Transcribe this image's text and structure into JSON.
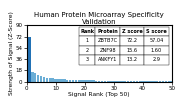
{
  "chart_data": {
    "type": "bar",
    "title": "Human Protein Microarray Specificity Validation",
    "xlabel": "Signal Rank (Top 50)",
    "ylabel": "Strength of Signal (Z-Score)",
    "x": [
      1,
      2,
      3,
      4,
      5,
      6,
      7,
      8,
      9,
      10,
      11,
      12,
      13,
      14,
      15,
      16,
      17,
      18,
      19,
      20,
      21,
      22,
      23,
      24,
      25,
      26,
      27,
      28,
      29,
      30,
      31,
      32,
      33,
      34,
      35,
      36,
      37,
      38,
      39,
      40,
      41,
      42,
      43,
      44,
      45,
      46,
      47,
      48,
      49,
      50
    ],
    "values": [
      72.2,
      15.6,
      13.2,
      10.5,
      8.8,
      7.5,
      6.5,
      5.7,
      5.0,
      4.5,
      4.1,
      3.8,
      3.5,
      3.2,
      3.0,
      2.8,
      2.6,
      2.4,
      2.3,
      2.1,
      2.0,
      1.9,
      1.8,
      1.7,
      1.65,
      1.6,
      1.55,
      1.5,
      1.45,
      1.4,
      1.35,
      1.3,
      1.25,
      1.2,
      1.15,
      1.1,
      1.05,
      1.0,
      0.95,
      0.9,
      0.87,
      0.84,
      0.81,
      0.78,
      0.75,
      0.72,
      0.69,
      0.66,
      0.63,
      0.6
    ],
    "colors": [
      "#2171b5",
      "#6baed6",
      "#6baed6",
      "#6baed6",
      "#6baed6",
      "#6baed6",
      "#6baed6",
      "#6baed6",
      "#6baed6",
      "#6baed6",
      "#6baed6",
      "#6baed6",
      "#6baed6",
      "#6baed6",
      "#6baed6",
      "#6baed6",
      "#6baed6",
      "#6baed6",
      "#6baed6",
      "#6baed6",
      "#6baed6",
      "#6baed6",
      "#6baed6",
      "#6baed6",
      "#6baed6",
      "#6baed6",
      "#6baed6",
      "#6baed6",
      "#6baed6",
      "#6baed6",
      "#6baed6",
      "#6baed6",
      "#6baed6",
      "#6baed6",
      "#6baed6",
      "#6baed6",
      "#6baed6",
      "#6baed6",
      "#6baed6",
      "#6baed6",
      "#6baed6",
      "#6baed6",
      "#6baed6",
      "#6baed6",
      "#6baed6",
      "#6baed6",
      "#6baed6",
      "#6baed6",
      "#6baed6",
      "#6baed6"
    ],
    "xlim": [
      0,
      50
    ],
    "xticks": [
      0,
      10,
      20,
      30,
      40,
      50
    ],
    "ylim": [
      0,
      90
    ],
    "yticks": [
      0,
      18,
      36,
      54,
      72,
      90
    ],
    "grid": false,
    "table": [
      [
        "Rank",
        "Protein",
        "Z score",
        "S score"
      ],
      [
        "1",
        "ZBTB7C",
        "72.2",
        "57.04"
      ],
      [
        "2",
        "ZNF98",
        "15.6",
        "1.60"
      ],
      [
        "3",
        "ANKFY1",
        "13.2",
        "2.9"
      ]
    ]
  }
}
